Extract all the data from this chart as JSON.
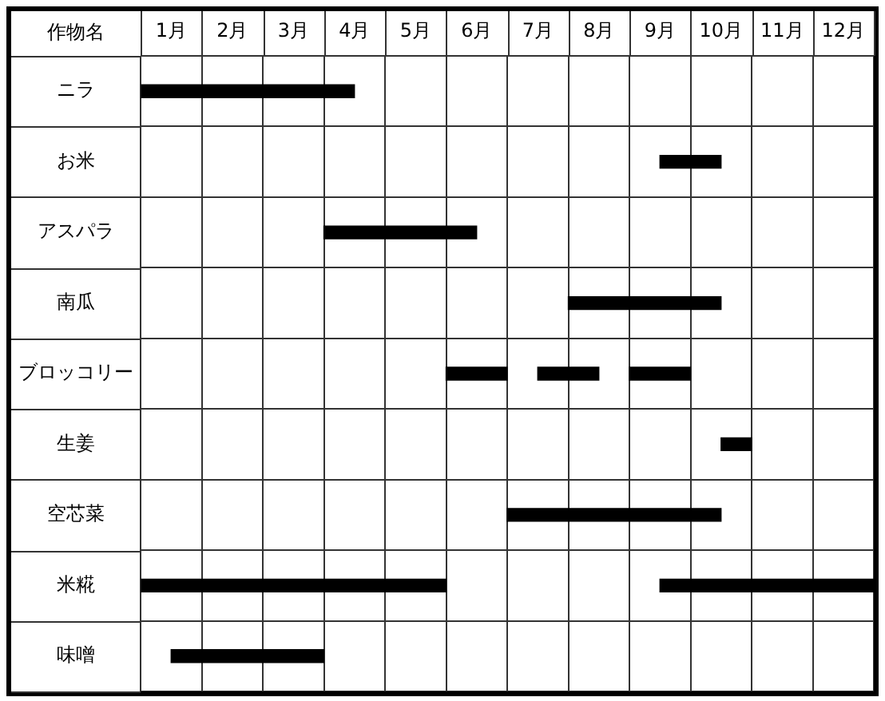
{
  "chart_data": {
    "type": "bar",
    "orientation": "horizontal",
    "ylabel": "作物名",
    "categories": [
      "ニラ",
      "お米",
      "アスパラ",
      "南瓜",
      "ブロッコリー",
      "生姜",
      "空芯菜",
      "米糀",
      "味噌"
    ],
    "series": [
      {
        "color": "#000000",
        "base": [
          0,
          8.5,
          3,
          7,
          5,
          9.5,
          6,
          0,
          0.5
        ],
        "values": [
          3.5,
          1,
          2.5,
          2.5,
          1,
          0.5,
          3.5,
          5,
          2.5
        ]
      },
      {
        "color": "#000000",
        "base": [
          null,
          null,
          null,
          null,
          6.5,
          null,
          null,
          8.5,
          null
        ],
        "values": [
          null,
          null,
          null,
          null,
          1,
          null,
          null,
          3.5,
          null
        ]
      },
      {
        "color": "#000000",
        "base": [
          null,
          null,
          null,
          null,
          8,
          null,
          null,
          null,
          null
        ],
        "values": [
          null,
          null,
          null,
          null,
          1,
          null,
          null,
          null,
          null
        ]
      }
    ],
    "xlim": [
      0,
      12
    ],
    "xticks": [
      {
        "value": 0,
        "label": null
      },
      {
        "value": 0.5,
        "label": "1月"
      },
      {
        "value": 1,
        "label": null
      },
      {
        "value": 1.5,
        "label": "2月"
      },
      {
        "value": 2,
        "label": null
      },
      {
        "value": 2.5,
        "label": "3月"
      },
      {
        "value": 3,
        "label": null
      },
      {
        "value": 3.5,
        "label": "4月"
      },
      {
        "value": 4,
        "label": null
      },
      {
        "value": 4.5,
        "label": "5月"
      },
      {
        "value": 5,
        "label": null
      },
      {
        "value": 5.5,
        "label": "6月"
      },
      {
        "value": 6,
        "label": null
      },
      {
        "value": 6.5,
        "label": "7月"
      },
      {
        "value": 7,
        "label": null
      },
      {
        "value": 7.5,
        "label": "8月"
      },
      {
        "value": 8,
        "label": null
      },
      {
        "value": 8.5,
        "label": "9月"
      },
      {
        "value": 9,
        "label": null
      },
      {
        "value": 9.5,
        "label": "10月"
      },
      {
        "value": 10,
        "label": null
      },
      {
        "value": 10.5,
        "label": "11月"
      },
      {
        "value": 11,
        "label": null
      },
      {
        "value": 11.5,
        "label": "12月"
      },
      {
        "value": 12,
        "label": null
      }
    ],
    "grid": true
  }
}
